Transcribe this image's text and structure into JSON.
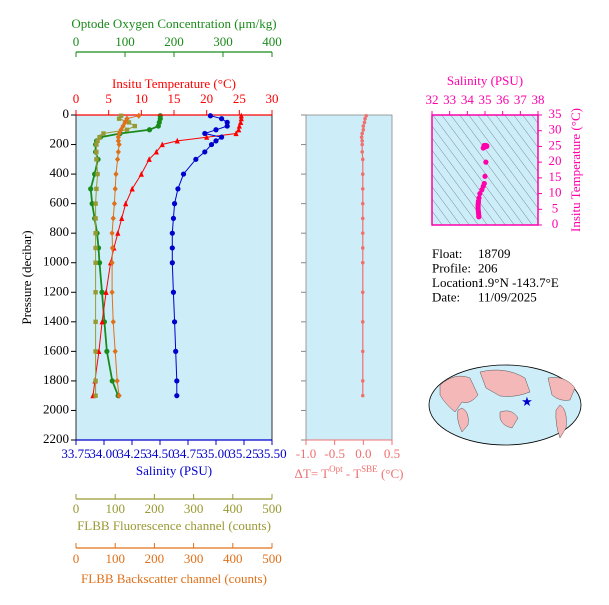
{
  "chart_data": [
    {
      "type": "profile",
      "ylabel": "Pressure (decibar)",
      "ylim": [
        0,
        2200
      ],
      "yticks": [
        0,
        200,
        400,
        600,
        800,
        1000,
        1200,
        1400,
        1600,
        1800,
        2000,
        2200
      ],
      "pressure": [
        5,
        25,
        50,
        75,
        100,
        125,
        150,
        175,
        200,
        250,
        300,
        400,
        500,
        600,
        700,
        800,
        900,
        1000,
        1200,
        1400,
        1600,
        1800,
        1900
      ],
      "series": [
        {
          "name": "Optode Oxygen Concentration (μm/kg)",
          "color": "#1a8a1a",
          "marker": "circle",
          "xlim": [
            0,
            400
          ],
          "xticks": [
            0,
            100,
            200,
            300,
            400
          ],
          "values": [
            172,
            172,
            170,
            168,
            150,
            90,
            50,
            42,
            40,
            40,
            45,
            38,
            30,
            33,
            38,
            43,
            46,
            48,
            53,
            58,
            63,
            74,
            86
          ]
        },
        {
          "name": "Insitu Temperature (°C)",
          "color": "#ff0000",
          "marker": "triangle",
          "xlim": [
            0,
            30
          ],
          "xticks": [
            0,
            5,
            10,
            15,
            20,
            25,
            30
          ],
          "values": [
            25.3,
            25.3,
            25.2,
            25.0,
            24.9,
            24.5,
            20.0,
            15.5,
            13.2,
            12.3,
            11.2,
            10.0,
            8.6,
            7.6,
            7.0,
            6.4,
            5.8,
            5.3,
            4.6,
            4.0,
            3.5,
            2.9,
            2.6
          ]
        },
        {
          "name": "Salinity (PSU)",
          "color": "#0000cc",
          "marker": "circle",
          "xlim": [
            33.75,
            35.5
          ],
          "xticks": [
            33.75,
            {
              "value": 34,
              "label": "34.00"
            },
            34.25,
            {
              "value": 34.5,
              "label": "34.50"
            },
            34.75,
            {
              "value": 35,
              "label": "35.00"
            },
            35.25,
            {
              "value": 35.5,
              "label": "35.50"
            }
          ],
          "values": [
            34.95,
            35.05,
            35.1,
            35.1,
            35.0,
            34.9,
            35.05,
            35.0,
            34.96,
            34.9,
            34.82,
            34.71,
            34.66,
            34.63,
            34.62,
            34.61,
            34.61,
            34.61,
            34.62,
            34.63,
            34.64,
            34.65,
            34.65
          ]
        },
        {
          "name": "FLBB Fluorescence channel (counts)",
          "color": "#999933",
          "marker": "square",
          "xlim": [
            0,
            500
          ],
          "xticks": [
            0,
            100,
            200,
            300,
            400,
            500
          ],
          "values": [
            115,
            110,
            135,
            150,
            130,
            70,
            60,
            55,
            52,
            52,
            52,
            55,
            52,
            50,
            50,
            50,
            50,
            50,
            50,
            50,
            50,
            50,
            50
          ]
        },
        {
          "name": "FLBB Backscatter channel (counts)",
          "color": "#e0701a",
          "marker": "diamond",
          "xlim": [
            0,
            500
          ],
          "xticks": [
            0,
            100,
            200,
            300,
            400,
            500
          ],
          "values": [
            160,
            130,
            125,
            120,
            115,
            110,
            108,
            108,
            110,
            108,
            106,
            102,
            100,
            98,
            95,
            92,
            93,
            92,
            92,
            95,
            100,
            105,
            110
          ]
        }
      ]
    },
    {
      "type": "delta",
      "xlabel": [
        "ΔT= T",
        "Opt",
        " - T",
        "SBE",
        " (°C)"
      ],
      "color": "#f07070",
      "xlim": [
        -1,
        0.5
      ],
      "xticks": [
        {
          "value": -1,
          "label": "-1.0"
        },
        -0.5,
        {
          "value": 0,
          "label": "0.0"
        },
        0.5
      ],
      "values": [
        0.05,
        0.03,
        0.02,
        0.0,
        0.0,
        -0.02,
        -0.03,
        -0.02,
        -0.02,
        -0.02,
        -0.01,
        -0.01,
        -0.01,
        -0.01,
        -0.01,
        -0.01,
        -0.01,
        -0.01,
        -0.01,
        -0.01,
        -0.01,
        -0.01,
        -0.01
      ]
    },
    {
      "type": "scatter",
      "title": "Salinity (PSU)",
      "ylabel": "Insitu Temperature (°C)",
      "color": "#ff00aa",
      "xlim": [
        32,
        38
      ],
      "xticks": [
        32,
        33,
        34,
        35,
        36,
        37,
        38
      ],
      "ylim": [
        0,
        35
      ],
      "yticks": [
        0,
        5,
        10,
        15,
        20,
        25,
        30,
        35
      ]
    }
  ],
  "info": {
    "rows": [
      [
        "Float:",
        "18709"
      ],
      [
        "Profile:",
        "206"
      ],
      [
        "Location:",
        "1.9°N  -143.7°E"
      ],
      [
        "Date:",
        "11/09/2025"
      ]
    ]
  }
}
